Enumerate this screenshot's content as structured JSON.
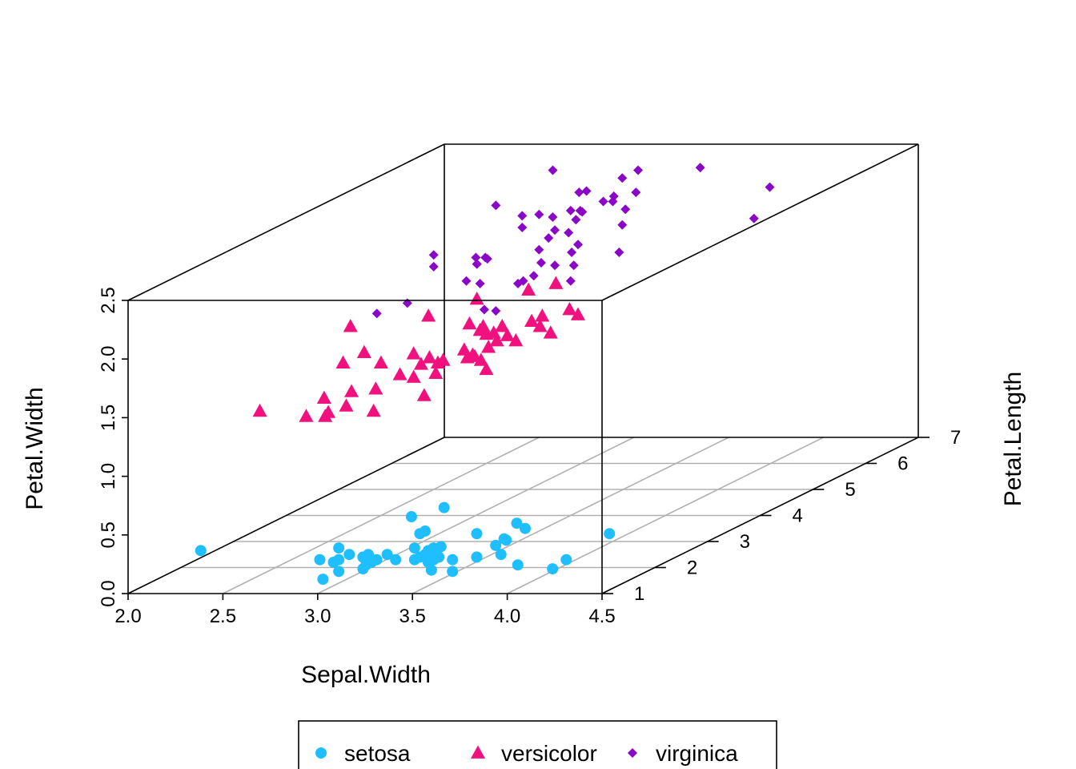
{
  "chart_data": {
    "type": "scatter",
    "subtype": "3d-scatter",
    "title": "",
    "xlabel": "Sepal.Width",
    "ylabel": "Petal.Width",
    "zlabel": "Petal.Length",
    "xlim": [
      2.0,
      4.5
    ],
    "ylim": [
      0.0,
      2.5
    ],
    "zlim": [
      1,
      7
    ],
    "x_ticks": [
      "2.0",
      "2.5",
      "3.0",
      "3.5",
      "4.0",
      "4.5"
    ],
    "y_ticks": [
      "0.0",
      "0.5",
      "1.0",
      "1.5",
      "2.0",
      "2.5"
    ],
    "z_ticks": [
      "1",
      "2",
      "3",
      "4",
      "5",
      "6",
      "7"
    ],
    "grid": "on floor plane",
    "legend": {
      "placement": "bottom",
      "orientation": "horizontal"
    },
    "series": [
      {
        "name": "setosa",
        "color": "#1FBFFF",
        "marker": "circle",
        "points": [
          [
            3.5,
            1.4,
            0.2
          ],
          [
            3.0,
            1.4,
            0.2
          ],
          [
            3.2,
            1.3,
            0.2
          ],
          [
            3.1,
            1.5,
            0.2
          ],
          [
            3.6,
            1.4,
            0.2
          ],
          [
            3.9,
            1.7,
            0.4
          ],
          [
            3.4,
            1.4,
            0.3
          ],
          [
            3.4,
            1.5,
            0.2
          ],
          [
            2.9,
            1.4,
            0.2
          ],
          [
            3.1,
            1.5,
            0.1
          ],
          [
            3.7,
            1.5,
            0.2
          ],
          [
            3.4,
            1.6,
            0.2
          ],
          [
            3.0,
            1.4,
            0.1
          ],
          [
            3.0,
            1.1,
            0.1
          ],
          [
            4.0,
            1.2,
            0.2
          ],
          [
            4.4,
            1.5,
            0.4
          ],
          [
            3.9,
            1.3,
            0.4
          ],
          [
            3.5,
            1.4,
            0.3
          ],
          [
            3.8,
            1.7,
            0.3
          ],
          [
            3.8,
            1.5,
            0.3
          ],
          [
            3.4,
            1.7,
            0.2
          ],
          [
            3.7,
            1.5,
            0.4
          ],
          [
            3.6,
            1.0,
            0.2
          ],
          [
            3.3,
            1.7,
            0.5
          ],
          [
            3.4,
            1.9,
            0.2
          ],
          [
            3.0,
            1.6,
            0.2
          ],
          [
            3.4,
            1.6,
            0.4
          ],
          [
            3.5,
            1.5,
            0.2
          ],
          [
            3.4,
            1.4,
            0.2
          ],
          [
            3.2,
            1.6,
            0.2
          ],
          [
            3.1,
            1.6,
            0.2
          ],
          [
            3.4,
            1.5,
            0.4
          ],
          [
            4.1,
            1.5,
            0.1
          ],
          [
            4.2,
            1.4,
            0.2
          ],
          [
            3.1,
            1.5,
            0.2
          ],
          [
            3.2,
            1.2,
            0.2
          ],
          [
            3.5,
            1.3,
            0.2
          ],
          [
            3.6,
            1.4,
            0.1
          ],
          [
            3.0,
            1.3,
            0.2
          ],
          [
            3.4,
            1.5,
            0.2
          ],
          [
            3.5,
            1.3,
            0.3
          ],
          [
            2.3,
            1.3,
            0.3
          ],
          [
            3.2,
            1.3,
            0.2
          ],
          [
            3.5,
            1.6,
            0.6
          ],
          [
            3.8,
            1.9,
            0.4
          ],
          [
            3.0,
            1.4,
            0.3
          ],
          [
            3.8,
            1.6,
            0.2
          ],
          [
            3.2,
            1.4,
            0.2
          ],
          [
            3.7,
            1.5,
            0.2
          ],
          [
            3.3,
            1.4,
            0.2
          ]
        ]
      },
      {
        "name": "versicolor",
        "color": "#F0117F",
        "marker": "triangle",
        "points": [
          [
            3.2,
            4.7,
            1.4
          ],
          [
            3.2,
            4.5,
            1.5
          ],
          [
            3.1,
            4.9,
            1.5
          ],
          [
            2.3,
            4.0,
            1.3
          ],
          [
            2.8,
            4.6,
            1.5
          ],
          [
            2.8,
            4.5,
            1.3
          ],
          [
            3.3,
            4.7,
            1.6
          ],
          [
            2.4,
            3.3,
            1.0
          ],
          [
            2.9,
            4.6,
            1.3
          ],
          [
            2.7,
            3.9,
            1.4
          ],
          [
            2.0,
            3.5,
            1.0
          ],
          [
            3.0,
            4.2,
            1.5
          ],
          [
            2.2,
            4.0,
            1.0
          ],
          [
            2.9,
            4.7,
            1.4
          ],
          [
            2.9,
            3.6,
            1.3
          ],
          [
            3.1,
            4.4,
            1.4
          ],
          [
            3.0,
            4.5,
            1.5
          ],
          [
            2.7,
            4.1,
            1.0
          ],
          [
            2.2,
            4.5,
            1.5
          ],
          [
            2.5,
            3.9,
            1.1
          ],
          [
            3.2,
            4.8,
            1.8
          ],
          [
            2.8,
            4.0,
            1.3
          ],
          [
            2.5,
            4.9,
            1.5
          ],
          [
            2.8,
            4.7,
            1.2
          ],
          [
            2.9,
            4.3,
            1.3
          ],
          [
            3.0,
            4.4,
            1.4
          ],
          [
            2.8,
            4.8,
            1.4
          ],
          [
            3.0,
            5.0,
            1.7
          ],
          [
            2.9,
            4.5,
            1.5
          ],
          [
            2.6,
            3.5,
            1.0
          ],
          [
            2.4,
            3.8,
            1.1
          ],
          [
            2.4,
            3.7,
            1.0
          ],
          [
            2.7,
            3.9,
            1.2
          ],
          [
            2.7,
            5.1,
            1.6
          ],
          [
            3.0,
            4.5,
            1.5
          ],
          [
            3.4,
            4.5,
            1.6
          ],
          [
            3.1,
            4.7,
            1.5
          ],
          [
            2.3,
            4.4,
            1.3
          ],
          [
            3.0,
            4.1,
            1.3
          ],
          [
            2.5,
            4.0,
            1.3
          ],
          [
            2.6,
            4.4,
            1.2
          ],
          [
            3.0,
            4.6,
            1.4
          ],
          [
            2.6,
            4.0,
            1.2
          ],
          [
            2.3,
            3.3,
            1.0
          ],
          [
            2.7,
            4.2,
            1.3
          ],
          [
            3.0,
            4.2,
            1.2
          ],
          [
            2.9,
            4.2,
            1.3
          ],
          [
            2.9,
            4.3,
            1.3
          ],
          [
            2.5,
            3.0,
            1.1
          ],
          [
            2.8,
            4.1,
            1.3
          ]
        ]
      },
      {
        "name": "virginica",
        "color": "#8A07C8",
        "marker": "diamond",
        "points": [
          [
            3.3,
            6.0,
            2.5
          ],
          [
            2.7,
            5.1,
            1.9
          ],
          [
            3.0,
            5.9,
            2.1
          ],
          [
            2.9,
            5.6,
            1.8
          ],
          [
            3.0,
            5.8,
            2.2
          ],
          [
            3.0,
            6.6,
            2.1
          ],
          [
            2.5,
            4.5,
            1.7
          ],
          [
            2.9,
            6.3,
            1.8
          ],
          [
            2.5,
            5.8,
            1.8
          ],
          [
            3.6,
            6.1,
            2.5
          ],
          [
            3.2,
            5.1,
            2.0
          ],
          [
            2.7,
            5.3,
            1.9
          ],
          [
            3.0,
            5.5,
            2.1
          ],
          [
            2.5,
            5.0,
            2.0
          ],
          [
            2.8,
            5.1,
            2.4
          ],
          [
            3.2,
            5.3,
            2.3
          ],
          [
            3.0,
            5.5,
            1.8
          ],
          [
            3.8,
            6.7,
            2.2
          ],
          [
            2.6,
            6.9,
            2.3
          ],
          [
            2.2,
            5.0,
            1.5
          ],
          [
            3.2,
            5.7,
            2.3
          ],
          [
            2.8,
            4.9,
            2.0
          ],
          [
            2.8,
            6.7,
            2.0
          ],
          [
            2.7,
            4.9,
            1.8
          ],
          [
            3.3,
            5.7,
            2.1
          ],
          [
            3.2,
            6.0,
            1.8
          ],
          [
            2.8,
            4.8,
            1.8
          ],
          [
            3.0,
            4.9,
            1.8
          ],
          [
            2.8,
            5.6,
            2.1
          ],
          [
            3.0,
            5.8,
            1.6
          ],
          [
            2.8,
            6.1,
            1.9
          ],
          [
            3.8,
            6.4,
            2.0
          ],
          [
            2.8,
            5.6,
            2.2
          ],
          [
            2.8,
            5.1,
            1.5
          ],
          [
            2.6,
            5.6,
            1.4
          ],
          [
            3.0,
            6.1,
            2.3
          ],
          [
            3.4,
            5.6,
            2.4
          ],
          [
            3.1,
            5.5,
            1.8
          ],
          [
            3.0,
            4.8,
            1.8
          ],
          [
            3.1,
            5.4,
            2.1
          ],
          [
            3.1,
            5.6,
            2.4
          ],
          [
            3.1,
            5.1,
            2.3
          ],
          [
            2.7,
            5.1,
            1.9
          ],
          [
            3.2,
            5.9,
            2.3
          ],
          [
            3.3,
            5.7,
            2.5
          ],
          [
            3.0,
            5.2,
            2.3
          ],
          [
            2.5,
            5.0,
            1.9
          ],
          [
            3.0,
            5.2,
            2.0
          ],
          [
            3.4,
            5.4,
            2.3
          ],
          [
            3.0,
            5.1,
            1.8
          ]
        ]
      }
    ]
  }
}
